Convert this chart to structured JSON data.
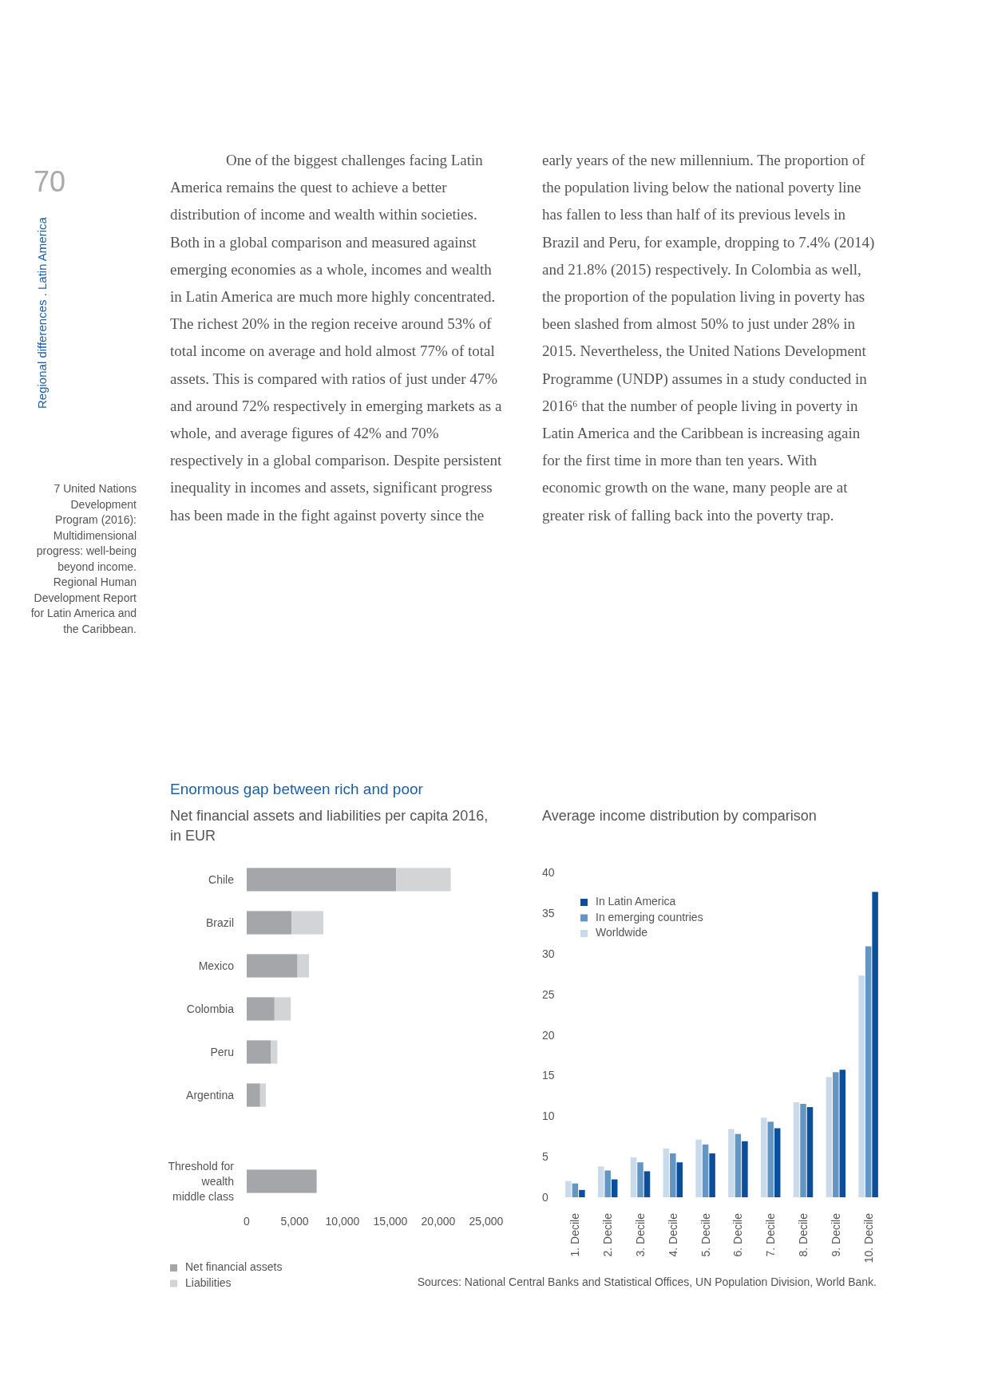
{
  "chart_data": [
    {
      "type": "bar",
      "orientation": "horizontal",
      "stacked": true,
      "title": "Enormous gap between rich and poor",
      "subtitle": "Net financial assets and liabilities per capita 2016, in EUR",
      "categories": [
        "Chile",
        "Brazil",
        "Mexico",
        "Colombia",
        "Peru",
        "Argentina",
        null,
        "Threshold for wealth middle class"
      ],
      "series": [
        {
          "name": "Net financial assets",
          "color": "#a5a6aa",
          "values": [
            15600,
            4700,
            5300,
            2900,
            2500,
            1400,
            null,
            7300
          ]
        },
        {
          "name": "Liabilities",
          "color": "#d3d4d6",
          "values": [
            5700,
            3300,
            1200,
            1700,
            700,
            600,
            null,
            null
          ]
        }
      ],
      "xlim": [
        0,
        25000
      ],
      "xticks": [
        0,
        {
          "value": 5000,
          "label": "5,000"
        },
        {
          "value": 10000,
          "label": "10,000"
        },
        {
          "value": 15000,
          "label": "15,000"
        },
        {
          "value": 20000,
          "label": "20,000"
        },
        {
          "value": 25000,
          "label": "25,000"
        }
      ],
      "legend": "bottom left",
      "annotations": [
        "70",
        "Regional differences . Latin America",
        "7 United Nations Development Program (2016): Multidimensional progress: well-being beyond income. Regional Human Development Report for Latin America and the Caribbean.",
        "One of the biggest challenges facing Latin America remains the quest to achieve a better distribution of income and wealth within societies. Both in a global comparison and measured against emerging economies as a whole, incomes and wealth in Latin America are much more highly concentrated. The richest 20% in the region receive around 53% of total income on average and hold almost 77% of total assets. This is compared with ratios of just under 47% and around 72% respectively in emerging markets as a whole, and average figures of 42% and 70% respectively in a global comparison. Despite persistent inequality in incomes and assets, significant progress has been made in the fight against poverty since the early years of the new millennium. The proportion of the population living below the national poverty line has fallen to less than half of its previous levels in Brazil and Peru, for example, dropping to 7.4% (2014) and 21.8% (2015) respectively. In Colombia as well, the proportion of the population living in poverty has been slashed from almost 50% to just under 28% in 2015. Nevertheless, the United Nations Development Programme (UNDP) assumes in a study conducted in 2016⁶ that the number of people living in poverty in Latin America and the Caribbean is increasing again for the first time in more than ten years. With economic growth on the wane, many people are at greater risk of falling back into the poverty trap."
      ]
    },
    {
      "type": "bar",
      "title": "Average income distribution by comparison",
      "categories": [
        "1. Decile",
        "2. Decile",
        "3. Decile",
        "4. Decile",
        "5. Decile",
        "6. Decile",
        "7. Decile",
        "8. Decile",
        "9. Decile",
        "10. Decile"
      ],
      "series": [
        {
          "name": "Worldwide",
          "color": "#c9daea",
          "values": [
            2.0,
            3.8,
            4.9,
            6.0,
            7.1,
            8.4,
            9.8,
            11.7,
            14.8,
            27.3
          ]
        },
        {
          "name": "In emerging countries",
          "color": "#6496c4",
          "values": [
            1.7,
            3.3,
            4.3,
            5.4,
            6.5,
            7.8,
            9.3,
            11.5,
            15.4,
            30.9
          ]
        },
        {
          "name": "In Latin America",
          "color": "#0b4f9c",
          "values": [
            0.9,
            2.2,
            3.2,
            4.3,
            5.4,
            6.9,
            8.5,
            11.1,
            15.7,
            37.6
          ]
        }
      ],
      "ylim": [
        0,
        40
      ],
      "yticks": [
        0,
        5,
        10,
        15,
        20,
        25,
        30,
        35,
        40
      ],
      "legend": "top left",
      "annotations": [
        "Sources: National Central Banks and Statistical Offices, UN Population Division, World Bank."
      ]
    }
  ]
}
